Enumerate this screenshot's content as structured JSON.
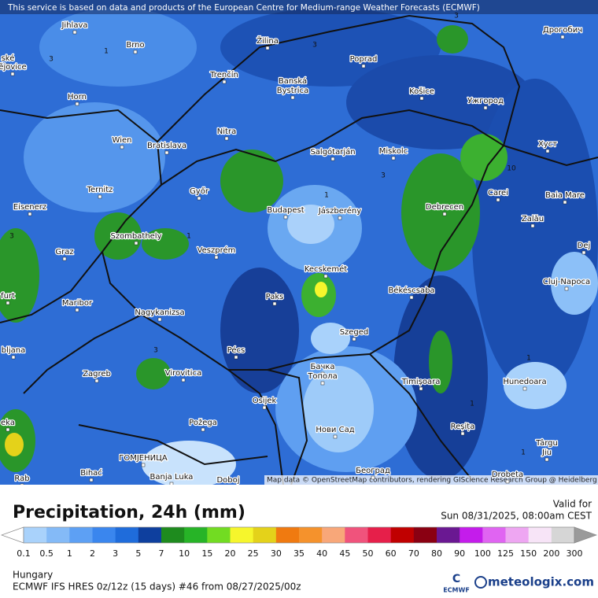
{
  "banner": "This service is based on data and products of the European Centre for Medium-range Weather Forecasts (ECMWF)",
  "attribution": "Map data © OpenStreetMap contributors, rendering GIScience Research Group @ Heidelberg University",
  "cities": [
    "Jihlava",
    "Brno",
    "Žilina",
    "Poprad",
    "Дрогобич",
    "ské",
    "ějovice",
    "Trenčín",
    "Banská",
    "Bystrica",
    "Košice",
    "Ужгород",
    "Horn",
    "Wien",
    "Bratislava",
    "Nitra",
    "Salgótarján",
    "Miskolc",
    "Хуст",
    "Ternitz",
    "Győr",
    "Budapest",
    "Jászberény",
    "Debrecen",
    "Carei",
    "Baia Mare",
    "Eisenerz",
    "Szombathely",
    "Graz",
    "Veszprém",
    "Zalău",
    "Dej",
    "Kecskemét",
    "Cluj-Napoca",
    "furt",
    "Paks",
    "Békéscsaba",
    "Maribor",
    "Nagykanizsa",
    "Szeged",
    "bljana",
    "Pécs",
    "Zagreb",
    "Virovitica",
    "Бачка",
    "Топола",
    "Timișoara",
    "Hunedoara",
    "Osijek",
    "Požega",
    "Нови Сад",
    "Reșița",
    "eka",
    "Târgu",
    "Jiu",
    "ГОМЈЕНИЦА",
    "Bihać",
    "Banja Luka",
    "Doboj",
    "Београд",
    "Drobeta",
    "Rab"
  ],
  "contours": [
    "1",
    "3",
    "3",
    "3",
    "1",
    "1",
    "3",
    "10",
    "3",
    "1",
    "3",
    "1",
    "1"
  ],
  "title": "Precipitation, 24h (mm)",
  "valid_label": "Valid for",
  "valid_time": "Sun 08/31/2025, 08:00am CEST",
  "legend": {
    "labels": [
      "0.1",
      "0.5",
      "1",
      "2",
      "3",
      "5",
      "7",
      "10",
      "15",
      "20",
      "25",
      "30",
      "35",
      "40",
      "45",
      "50",
      "60",
      "70",
      "80",
      "90",
      "100",
      "125",
      "150",
      "200",
      "300"
    ],
    "colors": [
      "#a9d2fb",
      "#84baf7",
      "#5da0f4",
      "#3a86ee",
      "#1f6cdb",
      "#0e3f9e",
      "#1e8b1e",
      "#27b427",
      "#72dc22",
      "#f6f62c",
      "#e4d21a",
      "#f07a10",
      "#f5922c",
      "#f8a779",
      "#f0537c",
      "#e61f4a",
      "#c00000",
      "#8a0012",
      "#6a1892",
      "#c41ceb",
      "#e064f2",
      "#eea6f2",
      "#f7e4f7",
      "#d6d6d6"
    ],
    "below_color": "#ffffff",
    "above_color": "#9a9a9a"
  },
  "region": "Hungary",
  "model": "ECMWF IFS HRES 0z/12z (15 days) #46 from  08/27/2025/00z",
  "logo_small": "ECMWF",
  "logo": "meteologix.com"
}
